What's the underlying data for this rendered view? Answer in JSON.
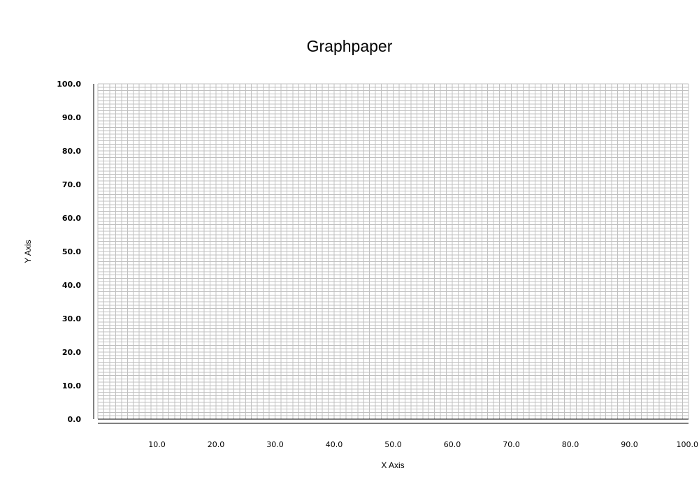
{
  "chart_data": {
    "type": "scatter",
    "title": "Graphpaper",
    "xlabel": "X Axis",
    "ylabel": "Y Axis",
    "xlim": [
      0,
      100
    ],
    "ylim": [
      0,
      100
    ],
    "x_tick_labels": [
      "10.0",
      "20.0",
      "30.0",
      "40.0",
      "50.0",
      "60.0",
      "70.0",
      "80.0",
      "90.0",
      "100.0"
    ],
    "y_tick_labels": [
      "0.0",
      "10.0",
      "20.0",
      "30.0",
      "40.0",
      "50.0",
      "60.0",
      "70.0",
      "80.0",
      "90.0",
      "100.0"
    ],
    "grid": true,
    "minor_grid_step": 1,
    "grid_color": "#c0c0c0",
    "axis_color": "#000000",
    "series": []
  }
}
